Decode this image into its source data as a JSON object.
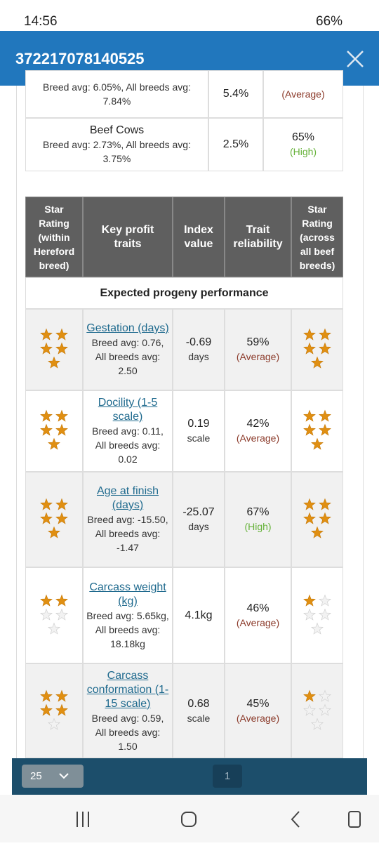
{
  "status_bar": {
    "time": "14:56",
    "battery": "66%"
  },
  "header": {
    "title": "372217078140525"
  },
  "summary_table": {
    "rows": [
      {
        "note": "Breed avg: 6.05%, All breeds avg: 7.84%",
        "value": "5.4%",
        "level": "(Average)"
      },
      {
        "label": "Beef Cows",
        "note": "Breed avg: 2.73%, All breeds avg: 3.75%",
        "value": "2.5%",
        "reliability": "65%",
        "level": "(High)"
      }
    ]
  },
  "traits_table": {
    "headers": [
      "Star Rating (within Hereford breed)",
      "Key profit traits",
      "Index value",
      "Trait reliability",
      "Star Rating (across all beef breeds)"
    ],
    "section": "Expected progeny performance",
    "rows": [
      {
        "trait": "Gestation (days)",
        "note": "Breed avg: 0.76, All breeds avg: 2.50",
        "index": "-0.69",
        "unit": "days",
        "reliability": "59%",
        "level": "(Average)",
        "stars_within": 5,
        "stars_across": 5
      },
      {
        "trait": "Docility (1-5 scale)",
        "note": "Breed avg: 0.11, All breeds avg: 0.02",
        "index": "0.19",
        "unit": "scale",
        "reliability": "42%",
        "level": "(Average)",
        "stars_within": 5,
        "stars_across": 5
      },
      {
        "trait": "Age at finish (days)",
        "note": "Breed avg: -15.50, All breeds avg: -1.47",
        "index": "-25.07",
        "unit": "days",
        "reliability": "67%",
        "level": "(High)",
        "stars_within": 5,
        "stars_across": 5
      },
      {
        "trait": "Carcass weight (kg)",
        "note": "Breed avg: 5.65kg, All breeds avg: 18.18kg",
        "index": "4.1kg",
        "reliability": "46%",
        "level": "(Average)",
        "stars_within": 2,
        "stars_across": 1
      },
      {
        "trait": "Carcass conformation (1-15 scale)",
        "note": "Breed avg: 0.59, All breeds avg: 1.50",
        "index": "0.68",
        "unit": "scale",
        "reliability": "45%",
        "level": "(Average)",
        "stars_within": 4,
        "stars_across": 1
      }
    ]
  },
  "pagination": {
    "page_size": "25",
    "page": "1"
  }
}
